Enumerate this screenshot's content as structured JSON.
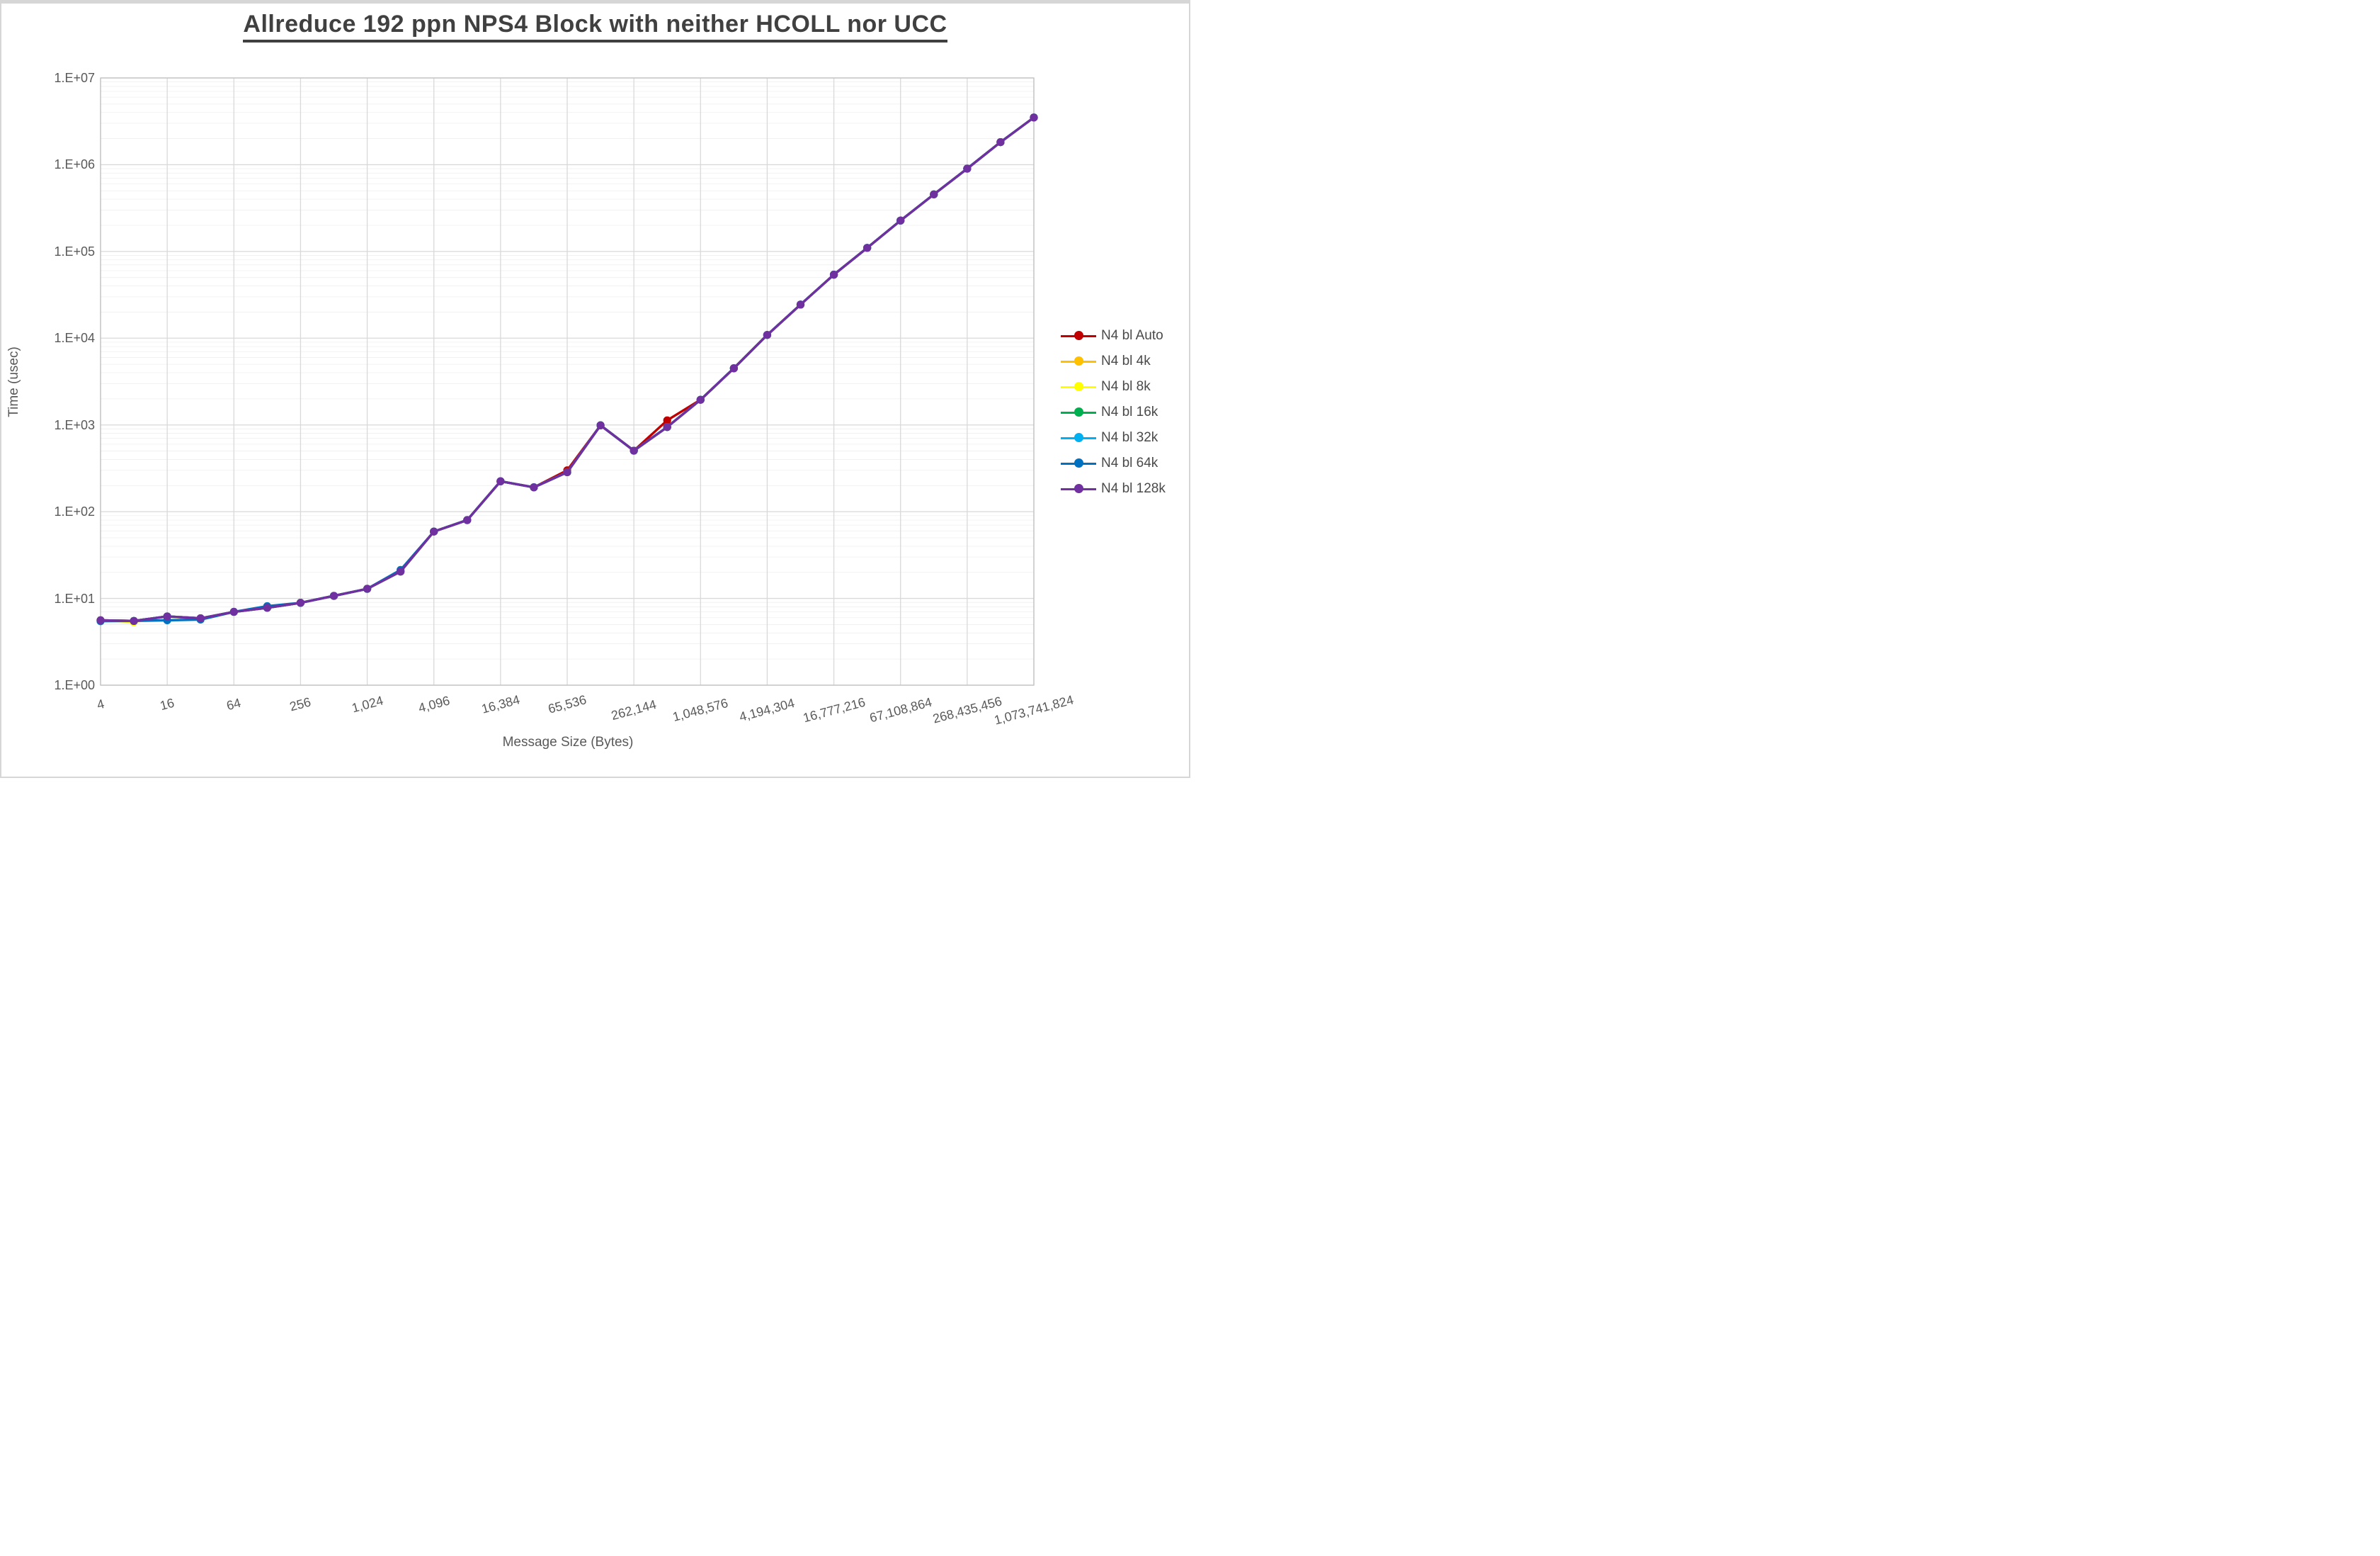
{
  "page": {
    "title": "Allreduce 192 ppn NPS4 Block with neither HCOLL nor UCC"
  },
  "axes": {
    "x_title": "Message Size (Bytes)",
    "y_title": "Time (usec)"
  },
  "chart_data": {
    "type": "line",
    "title": "Allreduce 192 ppn NPS4 Block with neither HCOLL nor UCC",
    "xlabel": "Message Size (Bytes)",
    "ylabel": "Time (usec)",
    "x_scale": "log2",
    "y_scale": "log10",
    "ylim": [
      1,
      10000000
    ],
    "grid": "major and minor log gridlines on",
    "legend_position": "right",
    "y_tick_labels": [
      "1.E+00",
      "1.E+01",
      "1.E+02",
      "1.E+03",
      "1.E+04",
      "1.E+05",
      "1.E+06",
      "1.E+07"
    ],
    "x_tick_labels": [
      "4",
      "16",
      "64",
      "256",
      "1,024",
      "4,096",
      "16,384",
      "65,536",
      "262,144",
      "1,048,576",
      "4,194,304",
      "16,777,216",
      "67,108,864",
      "268,435,456",
      "1,073,741,824"
    ],
    "x": [
      4,
      8,
      16,
      32,
      64,
      128,
      256,
      512,
      1024,
      2048,
      4096,
      8192,
      16384,
      32768,
      65536,
      131072,
      262144,
      524288,
      1048576,
      2097152,
      4194304,
      8388608,
      16777216,
      33554432,
      67108864,
      134217728,
      268435456,
      536870912,
      1073741824
    ],
    "series": [
      {
        "name": "N4 bl Auto",
        "color": "#C00000",
        "values": [
          5.6,
          5.5,
          6.2,
          5.9,
          7.0,
          7.8,
          8.9,
          10.7,
          12.9,
          20.4,
          59,
          80,
          224,
          191,
          300,
          990,
          505,
          1130,
          1950,
          4500,
          10900,
          24400,
          54000,
          110000,
          227000,
          455000,
          900000,
          1820000,
          3500000
        ]
      },
      {
        "name": "N4 bl 4k",
        "color": "#FFC000",
        "values": [
          5.6,
          5.5,
          6.2,
          5.9,
          7.0,
          7.8,
          8.9,
          10.7,
          12.9,
          20.4,
          59,
          80,
          224,
          191,
          285,
          990,
          505,
          945,
          1950,
          4500,
          10900,
          24400,
          54000,
          110000,
          227000,
          455000,
          900000,
          1820000,
          3500000
        ]
      },
      {
        "name": "N4 bl 8k",
        "color": "#FFFF00",
        "values": [
          5.6,
          5.35,
          6.2,
          5.75,
          7.0,
          7.8,
          8.9,
          10.7,
          12.9,
          20.4,
          59,
          80,
          224,
          191,
          285,
          990,
          505,
          945,
          1950,
          4500,
          10900,
          24400,
          54000,
          110000,
          227000,
          455000,
          900000,
          1820000,
          3500000
        ]
      },
      {
        "name": "N4 bl 16k",
        "color": "#00B050",
        "values": [
          5.6,
          5.5,
          6.2,
          5.9,
          7.0,
          7.8,
          8.9,
          10.7,
          12.9,
          20.4,
          59,
          80,
          224,
          191,
          285,
          990,
          505,
          945,
          1950,
          4500,
          10900,
          24400,
          54000,
          110000,
          227000,
          455000,
          900000,
          1820000,
          3500000
        ]
      },
      {
        "name": "N4 bl 32k",
        "color": "#00B0F0",
        "values": [
          5.45,
          5.5,
          6.2,
          5.9,
          7.0,
          7.8,
          8.9,
          10.7,
          12.9,
          20.4,
          59,
          80,
          224,
          191,
          285,
          990,
          505,
          945,
          1950,
          4500,
          10900,
          24400,
          54000,
          110000,
          227000,
          455000,
          900000,
          1820000,
          3500000
        ]
      },
      {
        "name": "N4 bl 64k",
        "color": "#0070C0",
        "values": [
          5.5,
          5.5,
          5.6,
          5.7,
          7.0,
          8.15,
          8.9,
          10.7,
          12.9,
          21.3,
          59,
          80,
          224,
          191,
          285,
          990,
          505,
          945,
          1950,
          4500,
          10900,
          24400,
          54000,
          110000,
          227000,
          455000,
          900000,
          1820000,
          3500000
        ]
      },
      {
        "name": "N4 bl 128k",
        "color": "#7030A0",
        "values": [
          5.6,
          5.5,
          6.2,
          5.9,
          7.0,
          7.8,
          8.9,
          10.7,
          12.9,
          20.4,
          59,
          80,
          224,
          191,
          285,
          990,
          505,
          945,
          1950,
          4500,
          10900,
          24400,
          54000,
          110000,
          227000,
          455000,
          900000,
          1820000,
          3500000
        ]
      }
    ]
  },
  "style": {
    "major_grid_color": "#d9d9d9",
    "minor_grid_color": "#efefef",
    "plot_border_color": "#c3c3c3",
    "text_color": "#595959",
    "title_color": "#404040"
  }
}
